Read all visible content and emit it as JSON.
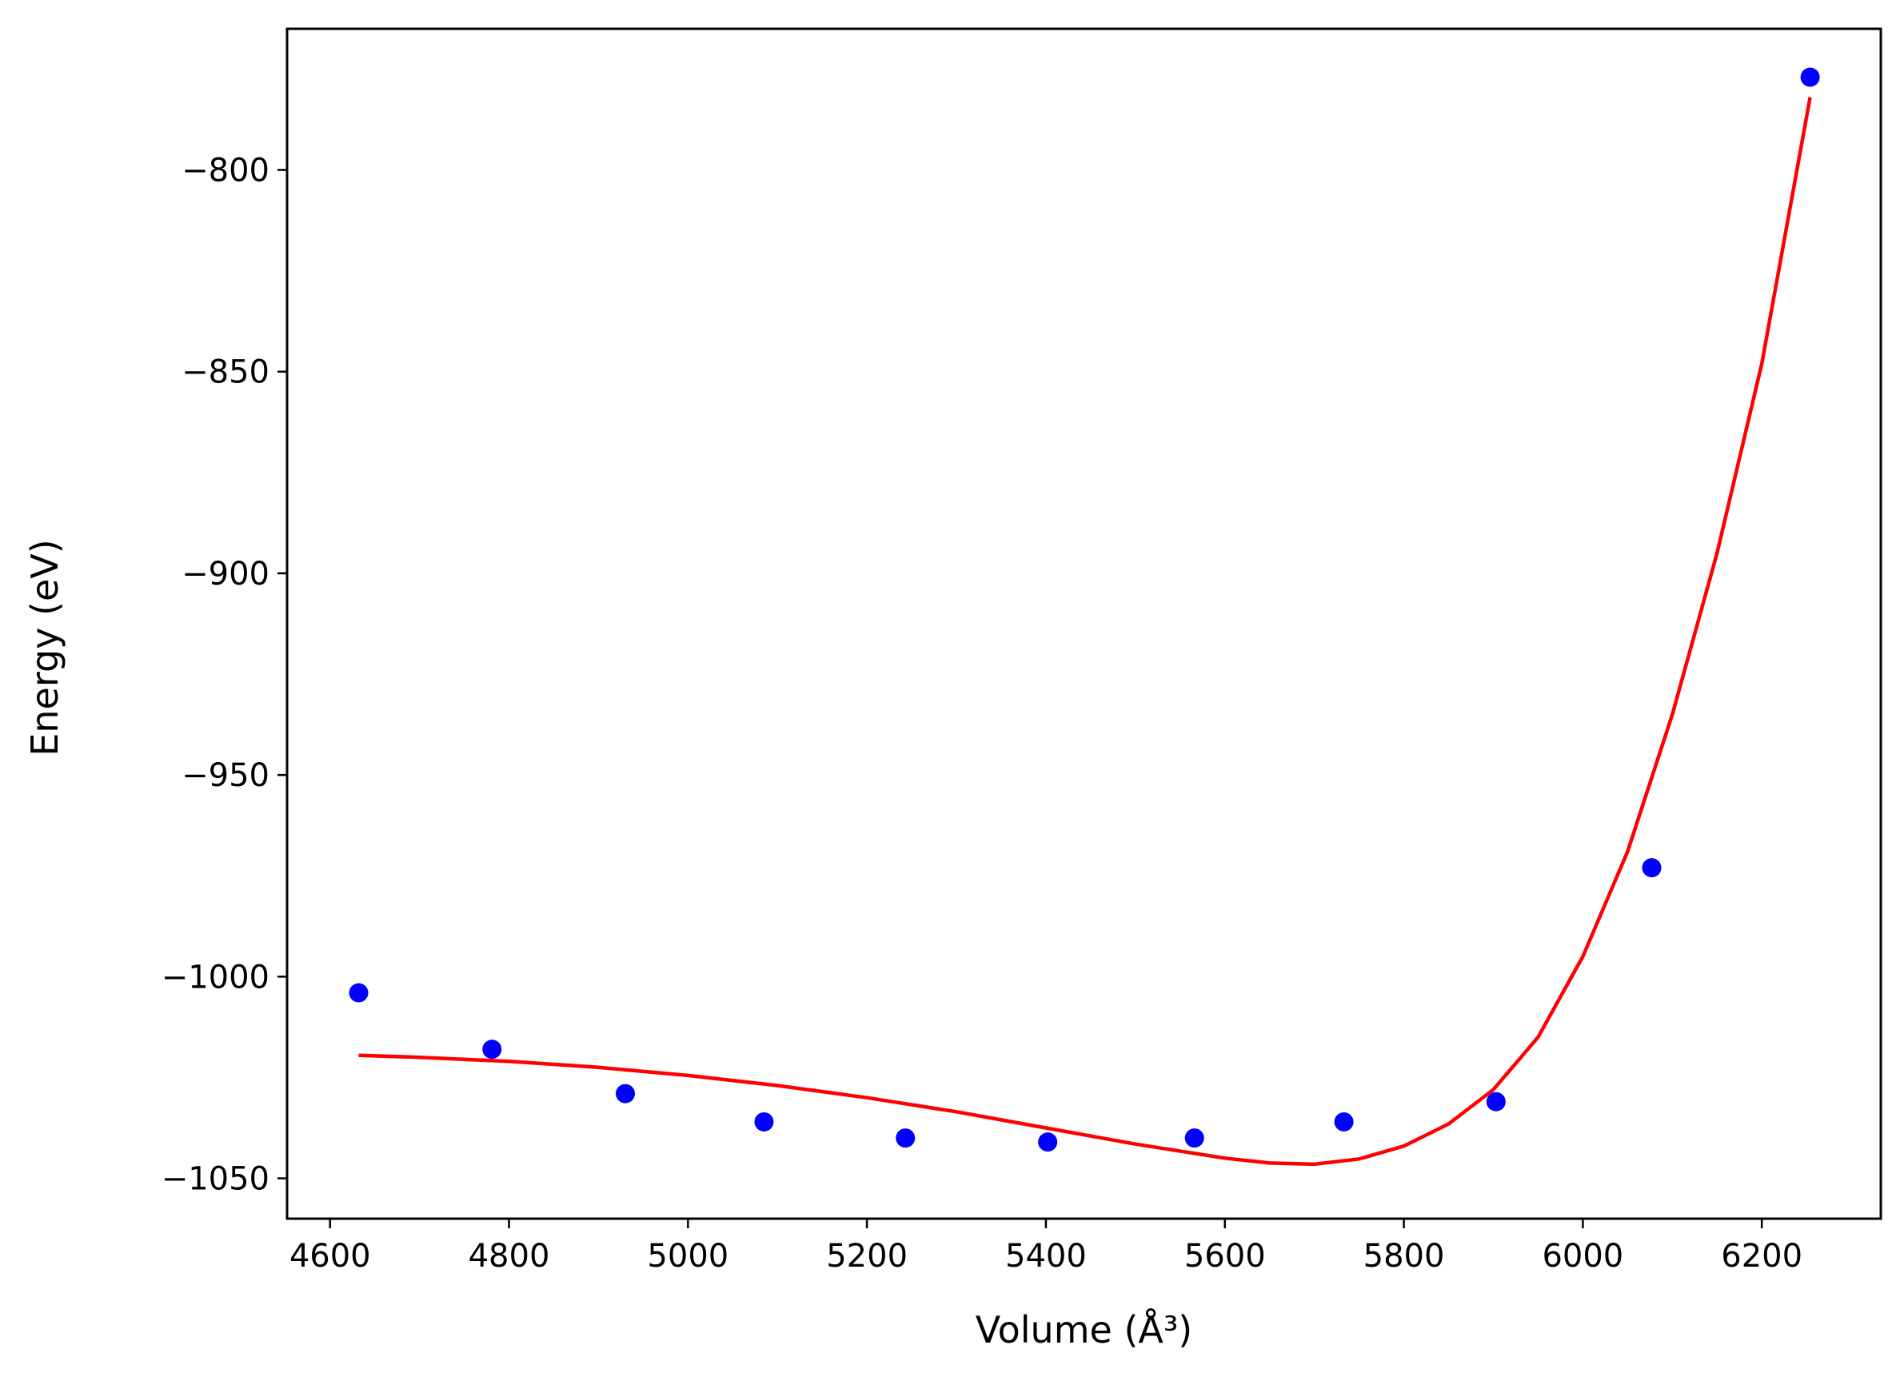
{
  "chart_data": {
    "type": "scatter",
    "title": "",
    "xlabel": "Volume (Å³)",
    "ylabel": "Energy (eV)",
    "xlim": [
      4552,
      6333
    ],
    "ylim": [
      -1060,
      -765
    ],
    "x_ticks": [
      4600,
      4800,
      5000,
      5200,
      5400,
      5600,
      5800,
      6000,
      6200
    ],
    "x_tick_labels": [
      "4600",
      "4800",
      "5000",
      "5200",
      "5400",
      "5600",
      "5800",
      "6000",
      "6200"
    ],
    "y_ticks": [
      -800,
      -850,
      -900,
      -950,
      -1000,
      -1050
    ],
    "y_tick_labels": [
      "−800",
      "−850",
      "−900",
      "−950",
      "−1000",
      "−1050"
    ],
    "grid": false,
    "legend": "none",
    "series": [
      {
        "kind": "scatter",
        "color": "#0000ff",
        "x": [
          4632,
          4781,
          4930,
          5085,
          5243,
          5402,
          5566,
          5733,
          5903,
          6077,
          6254
        ],
        "y": [
          -1004,
          -1018,
          -1029,
          -1036,
          -1040,
          -1041,
          -1040,
          -1036,
          -1031,
          -973,
          -777
        ]
      },
      {
        "kind": "line",
        "color": "#ff0000",
        "x": [
          4632,
          4700,
          4800,
          4900,
          5000,
          5100,
          5200,
          5300,
          5400,
          5500,
          5600,
          5650,
          5700,
          5750,
          5800,
          5850,
          5900,
          5950,
          6000,
          6050,
          6100,
          6150,
          6200,
          6254
        ],
        "y": [
          -1019.5,
          -1020,
          -1021,
          -1022.5,
          -1024.5,
          -1027,
          -1030,
          -1033.5,
          -1037.5,
          -1041.5,
          -1045,
          -1046.2,
          -1046.5,
          -1045.2,
          -1042,
          -1036.5,
          -1028,
          -1015,
          -995,
          -969,
          -935,
          -895,
          -848,
          -782
        ]
      }
    ]
  }
}
